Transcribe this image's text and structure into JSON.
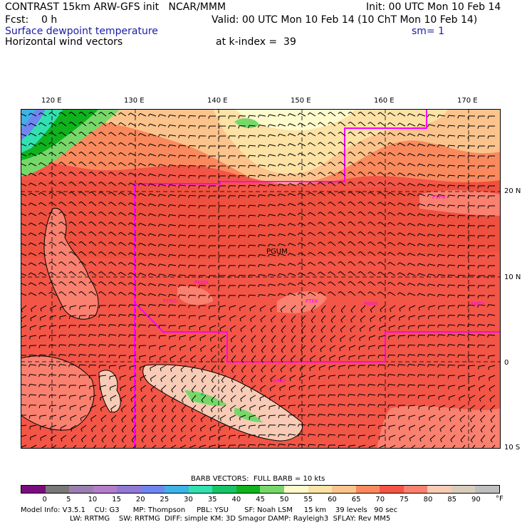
{
  "header": {
    "title": "CONTRAST 15km ARW-GFS init   NCAR/MMM",
    "fcst": "Fcst:    0 h",
    "field": "Surface dewpoint temperature",
    "vectors": "Horizontal wind vectors",
    "kindex": "at k-index =  39",
    "init": "Init: 00 UTC Mon 10 Feb 14",
    "valid": "Valid: 00 UTC Mon 10 Feb 14 (10 ChT Mon 10 Feb 14)",
    "smoothing": "sm= 1"
  },
  "map": {
    "lon_labels": [
      "120 E",
      "130 E",
      "140 E",
      "150 E",
      "160 E",
      "170 E"
    ],
    "lat_labels": [
      "20 N",
      "10 N",
      "0",
      "10 S"
    ],
    "station_labels": [
      "PGUM",
      "PTKK",
      "PTRO",
      "PKMR",
      "PTPN",
      "PMDY",
      "PKWA",
      "AYMO"
    ],
    "colors": {
      "boundary": "#ff00ff",
      "grid": "#000000"
    }
  },
  "legend": {
    "barb_title": "BARB VECTORS:  FULL BARB = 10 kts",
    "values": [
      "0",
      "5",
      "10",
      "15",
      "20",
      "25",
      "30",
      "35",
      "40",
      "45",
      "50",
      "55",
      "60",
      "65",
      "70",
      "75",
      "80",
      "85",
      "90"
    ],
    "unit": "°F",
    "colors": [
      "#7b0c80",
      "#787878",
      "#9b7fb0",
      "#b37ec9",
      "#9179d6",
      "#6f86f0",
      "#3fb2e6",
      "#33e0b0",
      "#18c466",
      "#10b21e",
      "#77d86a",
      "#fffacc",
      "#fde2a5",
      "#fcc48c",
      "#fa8a5e",
      "#f35547",
      "#fa8070",
      "#f7cbb6",
      "#d8cdbd",
      "#bfbfbf"
    ]
  },
  "footer": {
    "line1": "Model Info: V3.5.1    CU: G3      MP: Thompson     PBL: YSU       SF: Noah LSM     15 km    39 levels   90 sec",
    "line2": "LW: RRTMG    SW: RRTMG  DIFF: simple KM: 3D Smagor DAMP: Rayleigh3  SFLAY: Rev MM5"
  }
}
